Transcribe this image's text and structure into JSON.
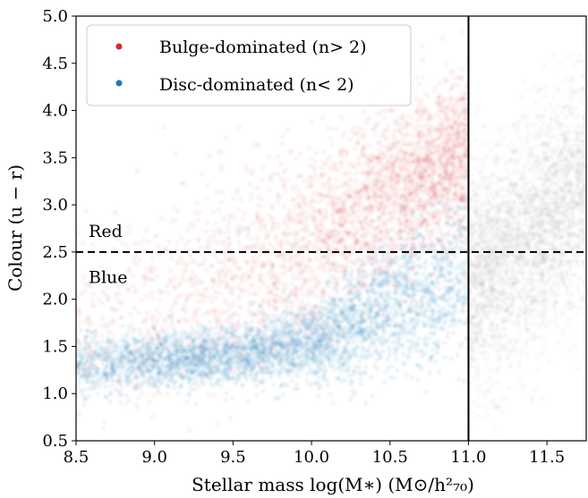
{
  "chart_data": {
    "type": "scatter",
    "title": "",
    "xlabel": "Stellar mass log(M∗) (M⊙/h²₇₀)",
    "ylabel": "Colour (u − r)",
    "xlim": [
      8.5,
      11.75
    ],
    "ylim": [
      0.5,
      5.0
    ],
    "xticks": [
      8.5,
      9.0,
      9.5,
      10.0,
      10.5,
      11.0,
      11.5
    ],
    "xtick_labels": [
      "8.5",
      "9.0",
      "9.5",
      "10.0",
      "10.5",
      "11.0",
      "11.5"
    ],
    "yticks": [
      0.5,
      1.0,
      1.5,
      2.0,
      2.5,
      3.0,
      3.5,
      4.0,
      4.5,
      5.0
    ],
    "ytick_labels": [
      "0.5",
      "1.0",
      "1.5",
      "2.0",
      "2.5",
      "3.0",
      "3.5",
      "4.0",
      "4.5",
      "5.0"
    ],
    "grid": false,
    "legend_position": "top-left",
    "series": [
      {
        "name": "Bulge-dominated (n> 2)",
        "color": "#d62728",
        "density_ridge": {
          "x": [
            8.5,
            9.0,
            9.5,
            10.0,
            10.3,
            10.5,
            10.7,
            10.9,
            11.0
          ],
          "y": [
            1.6,
            1.9,
            2.2,
            2.6,
            2.9,
            3.1,
            3.3,
            3.5,
            3.55
          ],
          "spread": [
            0.5,
            0.55,
            0.55,
            0.5,
            0.45,
            0.45,
            0.45,
            0.45,
            0.45
          ]
        }
      },
      {
        "name": "Disc-dominated (n< 2)",
        "color": "#1f77b4",
        "density_ridge": {
          "x": [
            8.5,
            9.0,
            9.5,
            10.0,
            10.3,
            10.5,
            10.7,
            10.9,
            11.0
          ],
          "y": [
            1.3,
            1.35,
            1.4,
            1.55,
            1.75,
            1.95,
            2.1,
            2.25,
            2.3
          ],
          "spread": [
            0.15,
            0.15,
            0.15,
            0.2,
            0.3,
            0.35,
            0.4,
            0.4,
            0.4
          ]
        }
      },
      {
        "name": "",
        "color": "#7f7f7f",
        "density_ridge": {
          "x": [
            11.0,
            11.2,
            11.4,
            11.6,
            11.75
          ],
          "y": [
            2.2,
            2.4,
            2.7,
            3.0,
            3.2
          ],
          "spread": [
            0.6,
            0.6,
            0.6,
            0.6,
            0.6
          ]
        }
      }
    ],
    "reference_lines": [
      {
        "orientation": "horizontal",
        "value": 2.5,
        "style": "dashed",
        "color": "#000000"
      },
      {
        "orientation": "vertical",
        "value": 11.0,
        "style": "solid",
        "color": "#000000"
      }
    ],
    "annotations": [
      {
        "text": "Red",
        "x": 8.58,
        "y": 2.66
      },
      {
        "text": "Blue",
        "x": 8.58,
        "y": 2.17
      }
    ]
  }
}
